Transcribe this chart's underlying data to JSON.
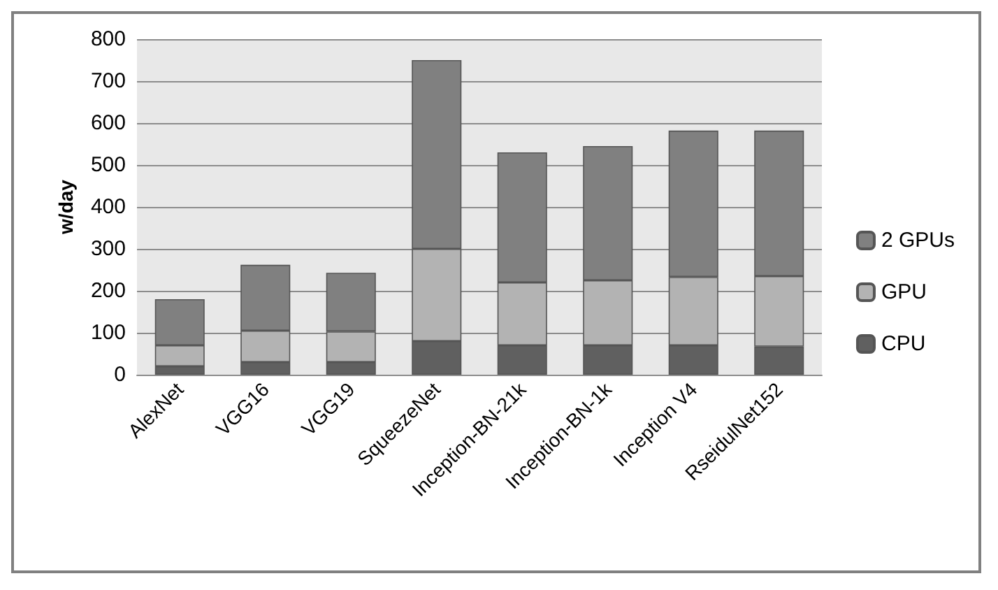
{
  "chart_data": {
    "type": "bar",
    "stacked": true,
    "ylabel": "w/day",
    "categories": [
      "AlexNet",
      "VGG16",
      "VGG19",
      "SqueezeNet",
      "Inception-BN-21k",
      "Inception-BN-1k",
      "Inception V4",
      "RseidulNet152"
    ],
    "series": [
      {
        "name": "CPU",
        "color": "#606060",
        "values": [
          20,
          30,
          30,
          80,
          70,
          70,
          70,
          67
        ]
      },
      {
        "name": "GPU",
        "color": "#b3b3b3",
        "values": [
          50,
          75,
          73,
          220,
          150,
          155,
          163,
          168
        ]
      },
      {
        "name": "2 GPUs",
        "color": "#808080",
        "values": [
          110,
          157,
          140,
          450,
          310,
          320,
          349,
          347
        ]
      }
    ],
    "ylim": [
      0,
      800
    ],
    "yticks": [
      0,
      100,
      200,
      300,
      400,
      500,
      600,
      700,
      800
    ],
    "grid": "y",
    "legend": "right"
  }
}
